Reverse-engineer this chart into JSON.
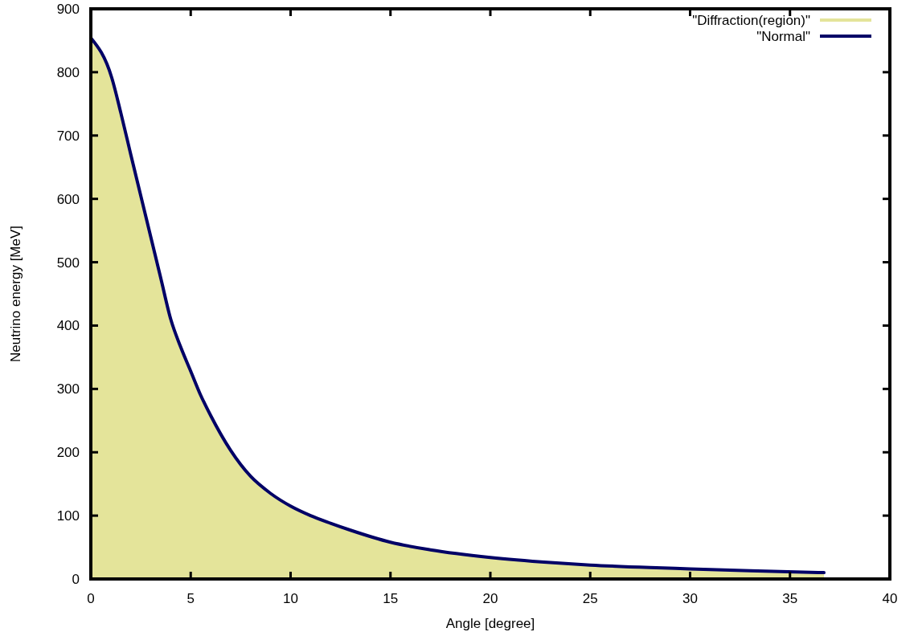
{
  "chart_data": {
    "type": "line",
    "xlabel": "Angle [degree]",
    "ylabel": "Neutrino energy [MeV]",
    "x": [
      0,
      1.05,
      1.5,
      2,
      2.5,
      3,
      3.5,
      4,
      4.5,
      5,
      5.5,
      6,
      7,
      8,
      9,
      10,
      11,
      12,
      13,
      15,
      17,
      20,
      23,
      25,
      28,
      30,
      33,
      36.7
    ],
    "series": [
      {
        "name": "\"Diffraction(region)\"",
        "type": "area",
        "color": "#e4e49a",
        "values": [
          854,
          791,
          736,
          670,
          605,
          540,
          475,
          410,
          366,
          328,
          290,
          258,
          203,
          162,
          135,
          115,
          100,
          88,
          77,
          58,
          46,
          34,
          26,
          22,
          18,
          16,
          13,
          10
        ]
      },
      {
        "name": "\"Normal\"",
        "color": "#000066",
        "values": [
          854,
          791,
          736,
          670,
          605,
          540,
          475,
          410,
          366,
          328,
          290,
          258,
          203,
          162,
          135,
          115,
          100,
          88,
          77,
          58,
          46,
          34,
          26,
          22,
          18,
          16,
          13,
          10
        ]
      }
    ],
    "xlim": [
      0,
      40
    ],
    "xticks": [
      0,
      5,
      10,
      15,
      20,
      25,
      30,
      35,
      40
    ],
    "ylim": [
      0,
      900
    ],
    "yticks": [
      0,
      100,
      200,
      300,
      400,
      500,
      600,
      700,
      800,
      900
    ],
    "legend": "top right"
  }
}
